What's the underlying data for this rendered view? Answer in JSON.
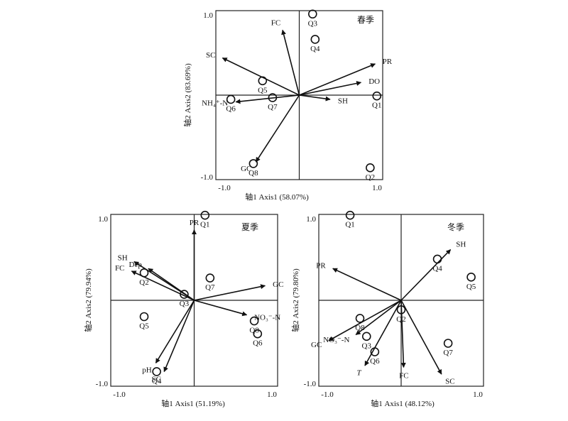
{
  "chart_data": [
    {
      "type": "scatter",
      "season": "春季",
      "xlabel": "轴1 Axis1 (58.07%)",
      "ylabel": "轴2 Axis2 (83.69%)",
      "xlim": [
        -1.0,
        1.0
      ],
      "ylim": [
        -1.0,
        1.0
      ],
      "x_tick_labels": [
        "-1.0",
        "1.0"
      ],
      "y_tick_labels": [
        "1.0",
        "-1.0"
      ],
      "vectors": [
        {
          "name": "FC",
          "x": -0.2,
          "y": 0.77
        },
        {
          "name": "SC",
          "x": -0.92,
          "y": 0.44
        },
        {
          "name": "PR",
          "x": 0.91,
          "y": 0.37
        },
        {
          "name": "DO",
          "x": 0.74,
          "y": 0.15
        },
        {
          "name": "SH",
          "x": 0.37,
          "y": -0.05
        },
        {
          "name": "NH₄⁺-N",
          "x": -0.76,
          "y": -0.08
        },
        {
          "name": "GC",
          "x": -0.52,
          "y": -0.79
        }
      ],
      "sites": [
        {
          "name": "Q1",
          "x": 0.93,
          "y": -0.01
        },
        {
          "name": "Q2",
          "x": 0.85,
          "y": -0.86
        },
        {
          "name": "Q3",
          "x": 0.16,
          "y": 0.96
        },
        {
          "name": "Q4",
          "x": 0.19,
          "y": 0.66
        },
        {
          "name": "Q5",
          "x": -0.44,
          "y": 0.17
        },
        {
          "name": "Q6",
          "x": -0.82,
          "y": -0.05
        },
        {
          "name": "Q7",
          "x": -0.32,
          "y": -0.03
        },
        {
          "name": "Q8",
          "x": -0.55,
          "y": -0.81
        }
      ]
    },
    {
      "type": "scatter",
      "season": "夏季",
      "xlabel": "轴1 Axis1 (51.19%)",
      "ylabel": "轴2 Axis2 (79.94%)",
      "xlim": [
        -1.0,
        1.0
      ],
      "ylim": [
        -1.0,
        1.0
      ],
      "x_tick_labels": [
        "-1.0",
        "1.0"
      ],
      "y_tick_labels": [
        "1.0",
        "-1.0"
      ],
      "vectors": [
        {
          "name": "PR",
          "x": 0.0,
          "y": 0.82
        },
        {
          "name": "SH",
          "x": -0.72,
          "y": 0.45
        },
        {
          "name": "Dep",
          "x": -0.55,
          "y": 0.37
        },
        {
          "name": "FC",
          "x": -0.75,
          "y": 0.34
        },
        {
          "name": "GC",
          "x": 0.85,
          "y": 0.17
        },
        {
          "name": "NO₃⁻-N",
          "x": 0.63,
          "y": -0.17
        },
        {
          "name": "pH",
          "x": -0.46,
          "y": -0.73
        },
        {
          "name": "SC",
          "x": -0.36,
          "y": -0.83
        }
      ],
      "sites": [
        {
          "name": "Q1",
          "x": 0.13,
          "y": 0.99
        },
        {
          "name": "Q2",
          "x": -0.6,
          "y": 0.32
        },
        {
          "name": "Q3",
          "x": -0.12,
          "y": 0.07
        },
        {
          "name": "Q7",
          "x": 0.19,
          "y": 0.26
        },
        {
          "name": "Q5",
          "x": -0.6,
          "y": -0.19
        },
        {
          "name": "Q8",
          "x": 0.72,
          "y": -0.24
        },
        {
          "name": "Q6",
          "x": 0.76,
          "y": -0.39
        },
        {
          "name": "Q4",
          "x": -0.45,
          "y": -0.83
        }
      ]
    },
    {
      "type": "scatter",
      "season": "冬季",
      "xlabel": "轴1 Axis1 (48.12%)",
      "ylabel": "轴2 Axis2 (79.80%)",
      "xlim": [
        -1.0,
        1.0
      ],
      "ylim": [
        -1.0,
        1.0
      ],
      "x_tick_labels": [
        "-1.0",
        "1.0"
      ],
      "y_tick_labels": [
        "1.0",
        "-1.0"
      ],
      "vectors": [
        {
          "name": "PR",
          "x": -0.83,
          "y": 0.37
        },
        {
          "name": "SH",
          "x": 0.6,
          "y": 0.59
        },
        {
          "name": "GC",
          "x": -0.88,
          "y": -0.47
        },
        {
          "name": "NO₃⁻-N",
          "x": -0.55,
          "y": -0.4
        },
        {
          "name": "T",
          "x": -0.44,
          "y": -0.76
        },
        {
          "name": "FC",
          "x": 0.03,
          "y": -0.78
        },
        {
          "name": "SC",
          "x": 0.49,
          "y": -0.86
        }
      ],
      "sites": [
        {
          "name": "Q1",
          "x": -0.62,
          "y": 0.99
        },
        {
          "name": "Q4",
          "x": 0.44,
          "y": 0.48
        },
        {
          "name": "Q5",
          "x": 0.85,
          "y": 0.27
        },
        {
          "name": "Q2",
          "x": 0.0,
          "y": -0.11
        },
        {
          "name": "Q8",
          "x": -0.5,
          "y": -0.21
        },
        {
          "name": "Q3",
          "x": -0.42,
          "y": -0.42
        },
        {
          "name": "Q6",
          "x": -0.32,
          "y": -0.6
        },
        {
          "name": "Q7",
          "x": 0.57,
          "y": -0.5
        }
      ]
    }
  ]
}
